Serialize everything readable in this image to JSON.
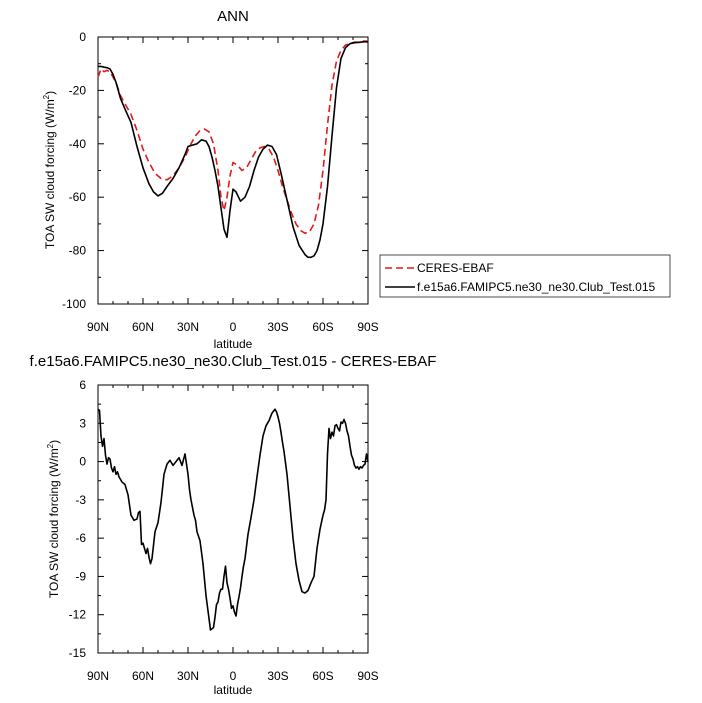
{
  "chart_data": [
    {
      "type": "line",
      "title": "ANN",
      "xlabel": "latitude",
      "ylabel": "TOA SW cloud forcing (W/m",
      "ylabel_sup": "2",
      "ylabel_end": ")",
      "xlim": [
        90,
        -90
      ],
      "ylim": [
        -100,
        0
      ],
      "x_ticks": [
        90,
        60,
        30,
        0,
        -30,
        -60,
        -90
      ],
      "x_tick_labels": [
        "90N",
        "60N",
        "30N",
        "0",
        "30S",
        "60S",
        "90S"
      ],
      "y_ticks": [
        0,
        -20,
        -40,
        -60,
        -80,
        -100
      ],
      "y_tick_labels": [
        "0",
        "-20",
        "-40",
        "-60",
        "-80",
        "-100"
      ],
      "grid": false,
      "legend_position": "right",
      "series": [
        {
          "name": "CERES-EBAF",
          "color": "#e31a1c",
          "dash": "dashed",
          "x": [
            90,
            88,
            86,
            84,
            82,
            80,
            78,
            75,
            72,
            68,
            64,
            60,
            56,
            52,
            48,
            44,
            40,
            36,
            32,
            28,
            25,
            22,
            19,
            16,
            13,
            10,
            8,
            6,
            4,
            2,
            0,
            -3,
            -6,
            -9,
            -12,
            -15,
            -18,
            -21,
            -24,
            -27,
            -30,
            -33,
            -36,
            -39,
            -42,
            -45,
            -48,
            -51,
            -54,
            -57,
            -60,
            -63,
            -66,
            -69,
            -72,
            -75,
            -78,
            -81,
            -84,
            -87,
            -90
          ],
          "y": [
            -15,
            -12,
            -13,
            -12.5,
            -13,
            -15,
            -17,
            -22,
            -25,
            -29,
            -35,
            -42,
            -47,
            -51,
            -53,
            -53.5,
            -52,
            -49,
            -45,
            -40,
            -37,
            -35,
            -34.5,
            -35.5,
            -40,
            -50,
            -60,
            -65,
            -60,
            -52,
            -47,
            -48,
            -50,
            -49,
            -46,
            -43,
            -41.5,
            -41,
            -42,
            -45,
            -50,
            -56,
            -61,
            -66,
            -70,
            -72.5,
            -73.5,
            -73,
            -70,
            -63,
            -50,
            -33,
            -18,
            -9,
            -5,
            -3,
            -2.5,
            -2.2,
            -2,
            -1.5,
            -1.5
          ]
        },
        {
          "name": "f.e15a6.FAMIPC5.ne30_ne30.Club_Test.015",
          "color": "#000000",
          "dash": "solid",
          "x": [
            90,
            88,
            86,
            84,
            82,
            80,
            78,
            75,
            72,
            68,
            64,
            60,
            56,
            53,
            50,
            47,
            44,
            40,
            36,
            32,
            30,
            27,
            24,
            21,
            18,
            16,
            14,
            12,
            10,
            8,
            6,
            4,
            2,
            0,
            -2,
            -5,
            -8,
            -11,
            -14,
            -17,
            -20,
            -23,
            -26,
            -29,
            -32,
            -36,
            -40,
            -44,
            -48,
            -50,
            -52,
            -54,
            -56,
            -58,
            -60,
            -63,
            -66,
            -69,
            -72,
            -75,
            -78,
            -81,
            -84,
            -87,
            -90
          ],
          "y": [
            -11,
            -11,
            -11.3,
            -11.5,
            -12,
            -14,
            -17,
            -23,
            -27,
            -32,
            -41,
            -49,
            -55,
            -58,
            -59.5,
            -58.5,
            -56,
            -53,
            -49,
            -44,
            -41,
            -40.5,
            -40,
            -38.5,
            -39,
            -41,
            -45,
            -50,
            -56,
            -64,
            -72,
            -75,
            -65,
            -57,
            -58,
            -61.5,
            -60,
            -56,
            -50,
            -45,
            -42,
            -40.5,
            -41,
            -44,
            -51,
            -61,
            -71,
            -78,
            -81.5,
            -82.5,
            -82.5,
            -82,
            -80,
            -76,
            -70,
            -56,
            -37,
            -19,
            -8,
            -4,
            -2.5,
            -2,
            -2,
            -1.8,
            -1.8
          ]
        }
      ]
    },
    {
      "type": "line",
      "title": "f.e15a6.FAMIPC5.ne30_ne30.Club_Test.015 - CERES-EBAF",
      "xlabel": "latitude",
      "ylabel": "TOA SW cloud forcing (W/m",
      "ylabel_sup": "2",
      "ylabel_end": ")",
      "xlim": [
        90,
        -90
      ],
      "ylim": [
        -15,
        6
      ],
      "x_ticks": [
        90,
        60,
        30,
        0,
        -30,
        -60,
        -90
      ],
      "x_tick_labels": [
        "90N",
        "60N",
        "30N",
        "0",
        "30S",
        "60S",
        "90S"
      ],
      "y_ticks": [
        6,
        3,
        0,
        -3,
        -6,
        -9,
        -12,
        -15
      ],
      "y_tick_labels": [
        "6",
        "3",
        "0",
        "-3",
        "-6",
        "-9",
        "-12",
        "-15"
      ],
      "grid": false,
      "series": [
        {
          "name": "",
          "color": "#000000",
          "dash": "solid",
          "x": [
            90,
            89,
            88,
            87,
            86,
            85,
            84,
            83,
            82,
            81,
            80,
            79,
            78,
            77,
            76,
            75,
            74,
            73,
            72,
            70,
            68,
            66,
            64,
            63,
            62,
            61,
            60,
            59,
            58,
            57,
            56,
            55,
            54,
            52,
            50,
            48,
            46,
            44,
            42,
            40,
            38,
            36,
            34,
            32,
            30,
            29,
            28,
            27,
            26,
            25,
            24,
            22,
            20,
            18,
            16,
            15,
            14,
            13,
            12,
            11,
            10,
            9,
            8,
            7,
            6,
            5,
            4,
            3,
            2,
            1,
            0,
            -1,
            -2,
            -3,
            -4,
            -5,
            -6,
            -7,
            -8,
            -10,
            -12,
            -14,
            -16,
            -18,
            -20,
            -22,
            -24,
            -26,
            -28,
            -29,
            -30,
            -31,
            -32,
            -33,
            -34,
            -36,
            -38,
            -40,
            -42,
            -44,
            -46,
            -48,
            -50,
            -52,
            -54,
            -56,
            -58,
            -60,
            -61,
            -62,
            -63,
            -64,
            -65,
            -66,
            -67,
            -68,
            -69,
            -70,
            -71,
            -72,
            -73,
            -74,
            -75,
            -76,
            -77,
            -78,
            -79,
            -80,
            -81,
            -82,
            -83,
            -84,
            -85,
            -86,
            -87,
            -88,
            -89,
            -90
          ],
          "y": [
            4.1,
            4.0,
            2.0,
            1.2,
            1.8,
            0.5,
            -0.2,
            0.3,
            0.2,
            -0.5,
            -0.8,
            -0.4,
            -1.0,
            -0.8,
            -1.2,
            -1.4,
            -1.6,
            -1.7,
            -1.8,
            -2.6,
            -4.2,
            -4.6,
            -4.5,
            -4.0,
            -3.9,
            -6.5,
            -6.4,
            -6.8,
            -7.2,
            -6.8,
            -7.5,
            -8.0,
            -7.6,
            -5.5,
            -4.8,
            -3.2,
            -1.0,
            -0.2,
            0.1,
            -0.3,
            0.0,
            0.3,
            -0.3,
            0.6,
            -1.0,
            -2.2,
            -3.0,
            -3.6,
            -4.2,
            -4.6,
            -5.5,
            -6.2,
            -8.0,
            -10.5,
            -12.3,
            -13.2,
            -13.1,
            -13.0,
            -12.2,
            -11.2,
            -11.0,
            -10.3,
            -10.0,
            -10.0,
            -9.0,
            -8.2,
            -9.5,
            -10.0,
            -10.7,
            -11.5,
            -11.3,
            -11.8,
            -12.1,
            -11.2,
            -10.6,
            -9.9,
            -9.0,
            -8.2,
            -7.6,
            -5.7,
            -4.4,
            -3.0,
            -1.2,
            0.5,
            2.0,
            2.8,
            3.2,
            3.8,
            4.1,
            3.9,
            3.5,
            3.0,
            2.3,
            1.5,
            0.8,
            -1.0,
            -3.5,
            -6.0,
            -8.0,
            -9.3,
            -10.2,
            -10.3,
            -10.1,
            -9.5,
            -9.0,
            -6.8,
            -5.3,
            -4.2,
            -3.8,
            -3.0,
            0.6,
            2.6,
            1.8,
            2.3,
            2.0,
            2.8,
            2.9,
            2.6,
            2.4,
            3.1,
            3.0,
            3.3,
            3.0,
            2.4,
            2.0,
            1.2,
            0.5,
            0.2,
            -0.3,
            -0.5,
            -0.4,
            -0.6,
            -0.4,
            -0.5,
            -0.3,
            -0.2,
            0.6,
            0.0
          ]
        }
      ]
    }
  ]
}
